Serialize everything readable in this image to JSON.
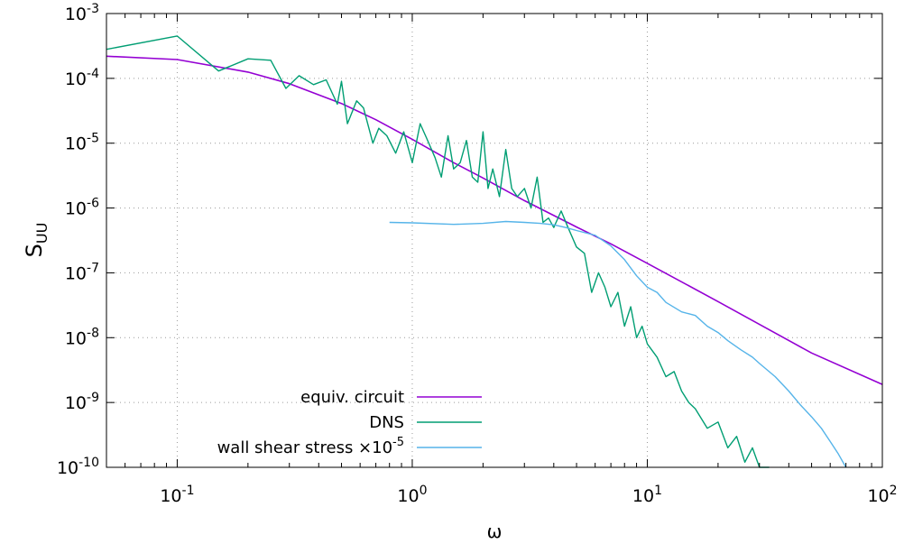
{
  "chart_data": {
    "type": "line",
    "xlabel": "ω",
    "ylabel_main": "S",
    "ylabel_sub": "UU",
    "xscale": "log",
    "yscale": "log",
    "xlim": [
      0.05,
      100
    ],
    "ylim": [
      1e-10,
      0.001
    ],
    "grid": true,
    "legend_position": "bottom-left",
    "x_ticks": [
      {
        "value": 0.1,
        "base": "10",
        "exp": "-1"
      },
      {
        "value": 1,
        "base": "10",
        "exp": "0"
      },
      {
        "value": 10,
        "base": "10",
        "exp": "1"
      },
      {
        "value": 100,
        "base": "10",
        "exp": "2"
      }
    ],
    "y_ticks": [
      {
        "value": 1e-10,
        "base": "10",
        "exp": "-10"
      },
      {
        "value": 1e-09,
        "base": "10",
        "exp": "-9"
      },
      {
        "value": 1e-08,
        "base": "10",
        "exp": "-8"
      },
      {
        "value": 1e-07,
        "base": "10",
        "exp": "-7"
      },
      {
        "value": 1e-06,
        "base": "10",
        "exp": "-6"
      },
      {
        "value": 1e-05,
        "base": "10",
        "exp": "-5"
      },
      {
        "value": 0.0001,
        "base": "10",
        "exp": "-4"
      },
      {
        "value": 0.001,
        "base": "10",
        "exp": "-3"
      }
    ],
    "series": [
      {
        "name": "equiv. circuit",
        "color": "#9400d3",
        "x": [
          0.05,
          0.1,
          0.2,
          0.3,
          0.5,
          0.7,
          1,
          1.5,
          2,
          3,
          5,
          7,
          10,
          20,
          30,
          50,
          100
        ],
        "y": [
          0.00022,
          0.000195,
          0.000125,
          8.3e-05,
          4.1e-05,
          2.3e-05,
          1.15e-05,
          5e-06,
          2.9e-06,
          1.3e-06,
          5.1e-07,
          2.8e-07,
          1.4e-07,
          3.6e-08,
          1.6e-08,
          5.8e-09,
          1.9e-09
        ]
      },
      {
        "name": "DNS",
        "color": "#009e73",
        "x": [
          0.05,
          0.1,
          0.15,
          0.2,
          0.25,
          0.29,
          0.33,
          0.38,
          0.43,
          0.48,
          0.5,
          0.53,
          0.58,
          0.62,
          0.68,
          0.72,
          0.78,
          0.85,
          0.92,
          1.0,
          1.08,
          1.15,
          1.25,
          1.33,
          1.42,
          1.5,
          1.6,
          1.7,
          1.8,
          1.9,
          2.0,
          2.1,
          2.2,
          2.35,
          2.5,
          2.65,
          2.8,
          3.0,
          3.2,
          3.4,
          3.6,
          3.8,
          4.0,
          4.3,
          4.6,
          5.0,
          5.4,
          5.8,
          6.2,
          6.6,
          7.0,
          7.5,
          8.0,
          8.5,
          9.0,
          9.5,
          10,
          11,
          12,
          13,
          14,
          15,
          16,
          18,
          20,
          22,
          24,
          26,
          28,
          30,
          33
        ],
        "y": [
          0.00028,
          0.00045,
          0.00013,
          0.0002,
          0.00019,
          7e-05,
          0.00011,
          8e-05,
          9.5e-05,
          4e-05,
          9e-05,
          2e-05,
          4.5e-05,
          3.5e-05,
          1e-05,
          1.7e-05,
          1.3e-05,
          7e-06,
          1.5e-05,
          5e-06,
          2e-05,
          1.2e-05,
          6e-06,
          3e-06,
          1.3e-05,
          4e-06,
          5e-06,
          1.1e-05,
          3e-06,
          2.5e-06,
          1.5e-05,
          2e-06,
          4e-06,
          1.5e-06,
          8e-06,
          2e-06,
          1.5e-06,
          2e-06,
          1e-06,
          3e-06,
          6e-07,
          7e-07,
          5e-07,
          9e-07,
          5e-07,
          2.5e-07,
          2e-07,
          5e-08,
          1e-07,
          6e-08,
          3e-08,
          5e-08,
          1.5e-08,
          3e-08,
          1e-08,
          1.5e-08,
          8e-09,
          5e-09,
          2.5e-09,
          3e-09,
          1.5e-09,
          1e-09,
          8e-10,
          4e-10,
          5e-10,
          2e-10,
          3e-10,
          1.2e-10,
          2e-10,
          1e-10,
          1e-10
        ]
      },
      {
        "name": "wall shear stress ×10",
        "name_sup": "-5",
        "color": "#56b4e9",
        "x": [
          0.8,
          1.0,
          1.5,
          2.0,
          2.5,
          3.0,
          3.5,
          4.0,
          4.5,
          5.0,
          6.0,
          7.0,
          8.0,
          9.0,
          10,
          11,
          12,
          14,
          16,
          18,
          20,
          22,
          25,
          28,
          30,
          35,
          40,
          45,
          50,
          55,
          60,
          65,
          70
        ],
        "y": [
          6e-07,
          5.9e-07,
          5.6e-07,
          5.8e-07,
          6.2e-07,
          6e-07,
          5.8e-07,
          5.5e-07,
          5e-07,
          4.5e-07,
          3.8e-07,
          2.6e-07,
          1.6e-07,
          9e-08,
          6e-08,
          5e-08,
          3.5e-08,
          2.5e-08,
          2.2e-08,
          1.5e-08,
          1.2e-08,
          9e-09,
          6.5e-09,
          5e-09,
          4e-09,
          2.5e-09,
          1.5e-09,
          9e-10,
          6e-10,
          4e-10,
          2.5e-10,
          1.6e-10,
          1e-10
        ]
      }
    ]
  }
}
